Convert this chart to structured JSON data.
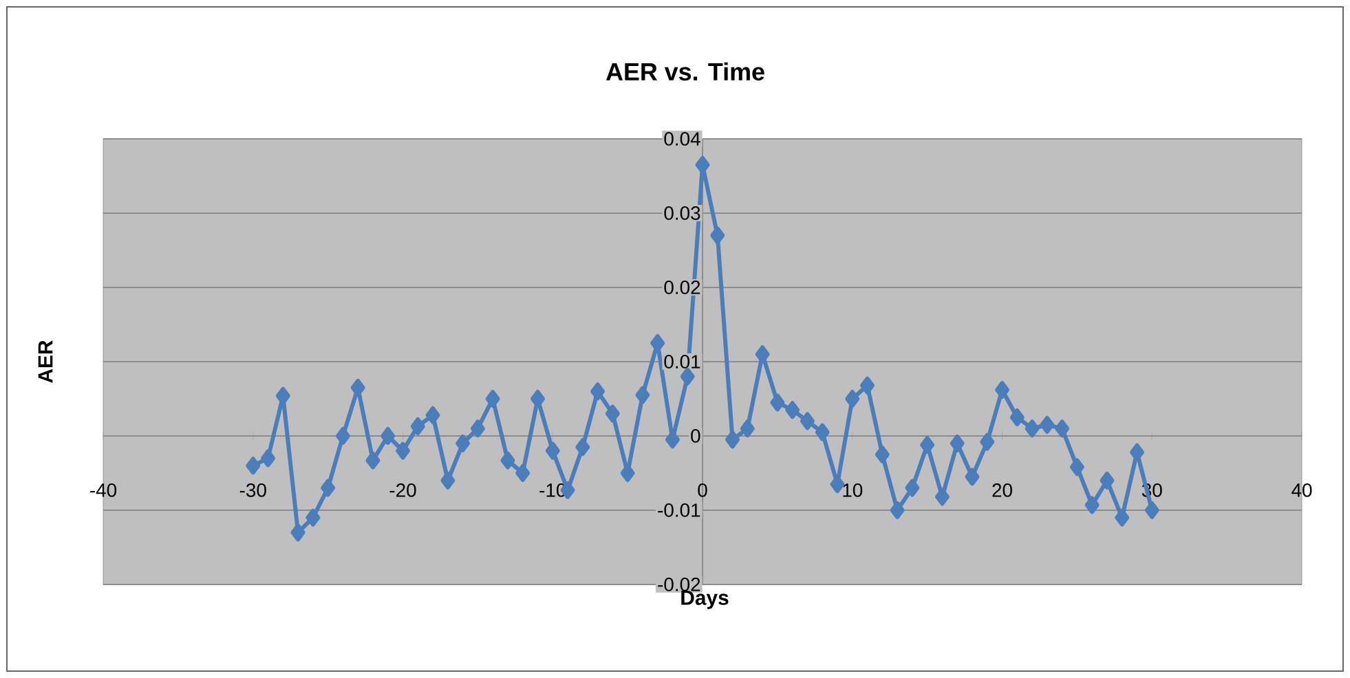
{
  "chart_data": {
    "type": "line",
    "title": "AER vs. Time",
    "xlabel": "Days",
    "ylabel": "AER",
    "x": [
      -30,
      -29,
      -28,
      -27,
      -26,
      -25,
      -24,
      -23,
      -22,
      -21,
      -20,
      -19,
      -18,
      -17,
      -16,
      -15,
      -14,
      -13,
      -12,
      -11,
      -10,
      -9,
      -8,
      -7,
      -6,
      -5,
      -4,
      -3,
      -2,
      -1,
      0,
      1,
      2,
      3,
      4,
      5,
      6,
      7,
      8,
      9,
      10,
      11,
      12,
      13,
      14,
      15,
      16,
      17,
      18,
      19,
      20,
      21,
      22,
      23,
      24,
      25,
      26,
      27,
      28,
      29,
      30
    ],
    "series": [
      {
        "color": "#4a7ebb",
        "values": [
          -0.004,
          -0.003,
          0.0054,
          -0.013,
          -0.011,
          -0.007,
          0.0,
          0.0065,
          -0.0033,
          0.0,
          -0.002,
          0.0013,
          0.0028,
          -0.006,
          -0.001,
          0.001,
          0.005,
          -0.0033,
          -0.005,
          0.005,
          -0.002,
          -0.0073,
          -0.0015,
          0.006,
          0.003,
          -0.005,
          0.0055,
          0.0125,
          -0.0005,
          0.008,
          0.0365,
          0.027,
          -0.0005,
          0.001,
          0.011,
          0.0045,
          0.0035,
          0.002,
          0.0005,
          -0.0065,
          0.005,
          0.0068,
          -0.0025,
          -0.01,
          -0.007,
          -0.0012,
          -0.0082,
          -0.001,
          -0.0055,
          -0.0008,
          0.0062,
          0.0025,
          0.001,
          0.0015,
          0.001,
          -0.0042,
          -0.0093,
          -0.006,
          -0.011,
          -0.0022,
          -0.01
        ]
      }
    ],
    "xlim": [
      -40,
      40
    ],
    "ylim": [
      -0.02,
      0.04
    ],
    "xticks": [
      -40,
      -30,
      -20,
      -10,
      0,
      10,
      20,
      30,
      40
    ],
    "yticks": [
      -0.02,
      -0.01,
      0,
      0.01,
      0.02,
      0.03,
      0.04
    ],
    "grid": "y",
    "marker": "diamond",
    "line_style": "solid"
  }
}
